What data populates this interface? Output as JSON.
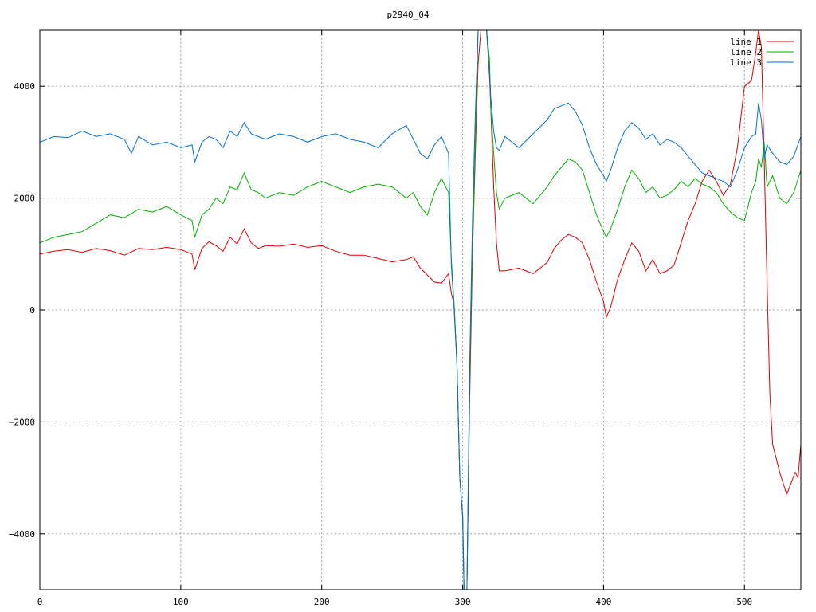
{
  "chart_data": {
    "type": "line",
    "title": "p2940_04",
    "xlabel": "",
    "ylabel": "",
    "xlim": [
      0,
      540
    ],
    "ylim": [
      -5000,
      5000
    ],
    "xticks": [
      0,
      100,
      200,
      300,
      400,
      500
    ],
    "yticks": [
      -4000,
      -2000,
      0,
      2000,
      4000
    ],
    "grid": true,
    "legend_position": "top-right",
    "series": [
      {
        "name": "line 1",
        "color": "#e00000",
        "points": [
          [
            0,
            1000
          ],
          [
            10,
            1050
          ],
          [
            20,
            1080
          ],
          [
            30,
            1030
          ],
          [
            40,
            1100
          ],
          [
            50,
            1060
          ],
          [
            60,
            980
          ],
          [
            70,
            1100
          ],
          [
            80,
            1080
          ],
          [
            90,
            1120
          ],
          [
            100,
            1080
          ],
          [
            108,
            1000
          ],
          [
            110,
            720
          ],
          [
            115,
            1100
          ],
          [
            120,
            1220
          ],
          [
            125,
            1150
          ],
          [
            130,
            1050
          ],
          [
            135,
            1300
          ],
          [
            140,
            1180
          ],
          [
            145,
            1450
          ],
          [
            150,
            1200
          ],
          [
            155,
            1100
          ],
          [
            160,
            1150
          ],
          [
            170,
            1140
          ],
          [
            180,
            1180
          ],
          [
            190,
            1120
          ],
          [
            200,
            1150
          ],
          [
            210,
            1050
          ],
          [
            220,
            980
          ],
          [
            230,
            980
          ],
          [
            240,
            920
          ],
          [
            250,
            860
          ],
          [
            260,
            900
          ],
          [
            265,
            950
          ],
          [
            270,
            750
          ],
          [
            280,
            500
          ],
          [
            285,
            480
          ],
          [
            290,
            650
          ],
          [
            292,
            300
          ],
          [
            294,
            100
          ],
          [
            296,
            -1000
          ],
          [
            298,
            -3000
          ],
          [
            300,
            -3700
          ],
          [
            301,
            -5000
          ],
          [
            303,
            -5000
          ],
          [
            305,
            -1600
          ],
          [
            307,
            1000
          ],
          [
            309,
            2800
          ],
          [
            311,
            4400
          ],
          [
            313,
            5000
          ],
          [
            317,
            5000
          ],
          [
            319,
            4200
          ],
          [
            320,
            3600
          ],
          [
            322,
            2200
          ],
          [
            324,
            1200
          ],
          [
            326,
            700
          ],
          [
            330,
            700
          ],
          [
            340,
            750
          ],
          [
            350,
            650
          ],
          [
            360,
            850
          ],
          [
            365,
            1100
          ],
          [
            370,
            1250
          ],
          [
            375,
            1350
          ],
          [
            380,
            1300
          ],
          [
            385,
            1200
          ],
          [
            390,
            900
          ],
          [
            395,
            500
          ],
          [
            400,
            150
          ],
          [
            402,
            -130
          ],
          [
            405,
            50
          ],
          [
            410,
            550
          ],
          [
            415,
            900
          ],
          [
            420,
            1200
          ],
          [
            425,
            1050
          ],
          [
            430,
            700
          ],
          [
            435,
            900
          ],
          [
            440,
            650
          ],
          [
            445,
            700
          ],
          [
            450,
            800
          ],
          [
            455,
            1200
          ],
          [
            460,
            1600
          ],
          [
            465,
            1900
          ],
          [
            470,
            2300
          ],
          [
            475,
            2500
          ],
          [
            480,
            2300
          ],
          [
            485,
            2050
          ],
          [
            490,
            2250
          ],
          [
            495,
            2900
          ],
          [
            500,
            4000
          ],
          [
            505,
            4100
          ],
          [
            508,
            4600
          ],
          [
            510,
            5000
          ],
          [
            512,
            4700
          ],
          [
            514,
            2700
          ],
          [
            516,
            500
          ],
          [
            518,
            -1500
          ],
          [
            520,
            -2400
          ],
          [
            525,
            -2900
          ],
          [
            530,
            -3300
          ],
          [
            533,
            -3100
          ],
          [
            536,
            -2900
          ],
          [
            538,
            -3000
          ],
          [
            540,
            -2400
          ]
        ]
      },
      {
        "name": "line 2",
        "color": "#00b000",
        "points": [
          [
            0,
            1200
          ],
          [
            10,
            1300
          ],
          [
            20,
            1350
          ],
          [
            30,
            1400
          ],
          [
            40,
            1550
          ],
          [
            50,
            1700
          ],
          [
            60,
            1650
          ],
          [
            70,
            1800
          ],
          [
            80,
            1750
          ],
          [
            90,
            1850
          ],
          [
            100,
            1700
          ],
          [
            108,
            1600
          ],
          [
            110,
            1300
          ],
          [
            115,
            1700
          ],
          [
            120,
            1800
          ],
          [
            125,
            2000
          ],
          [
            130,
            1900
          ],
          [
            135,
            2200
          ],
          [
            140,
            2150
          ],
          [
            145,
            2450
          ],
          [
            150,
            2150
          ],
          [
            155,
            2100
          ],
          [
            160,
            2000
          ],
          [
            170,
            2100
          ],
          [
            180,
            2050
          ],
          [
            190,
            2200
          ],
          [
            200,
            2300
          ],
          [
            210,
            2200
          ],
          [
            220,
            2100
          ],
          [
            230,
            2200
          ],
          [
            240,
            2250
          ],
          [
            250,
            2200
          ],
          [
            260,
            2000
          ],
          [
            265,
            2100
          ],
          [
            270,
            1850
          ],
          [
            275,
            1700
          ],
          [
            280,
            2100
          ],
          [
            285,
            2350
          ],
          [
            290,
            2100
          ],
          [
            292,
            900
          ],
          [
            294,
            100
          ],
          [
            296,
            -1000
          ],
          [
            298,
            -3000
          ],
          [
            300,
            -3700
          ],
          [
            301,
            -5000
          ],
          [
            303,
            -5000
          ],
          [
            305,
            -1200
          ],
          [
            307,
            1200
          ],
          [
            309,
            3000
          ],
          [
            311,
            5000
          ],
          [
            317,
            5000
          ],
          [
            319,
            4500
          ],
          [
            320,
            3600
          ],
          [
            322,
            2800
          ],
          [
            324,
            2100
          ],
          [
            326,
            1800
          ],
          [
            330,
            2000
          ],
          [
            340,
            2100
          ],
          [
            350,
            1900
          ],
          [
            360,
            2200
          ],
          [
            365,
            2400
          ],
          [
            370,
            2550
          ],
          [
            375,
            2700
          ],
          [
            380,
            2650
          ],
          [
            385,
            2500
          ],
          [
            390,
            2100
          ],
          [
            395,
            1700
          ],
          [
            400,
            1400
          ],
          [
            402,
            1300
          ],
          [
            405,
            1450
          ],
          [
            410,
            1800
          ],
          [
            415,
            2200
          ],
          [
            420,
            2500
          ],
          [
            425,
            2350
          ],
          [
            430,
            2100
          ],
          [
            435,
            2200
          ],
          [
            440,
            2000
          ],
          [
            445,
            2050
          ],
          [
            450,
            2150
          ],
          [
            455,
            2300
          ],
          [
            460,
            2200
          ],
          [
            465,
            2350
          ],
          [
            470,
            2250
          ],
          [
            475,
            2200
          ],
          [
            480,
            2100
          ],
          [
            485,
            1900
          ],
          [
            490,
            1750
          ],
          [
            495,
            1650
          ],
          [
            500,
            1600
          ],
          [
            505,
            2100
          ],
          [
            508,
            2300
          ],
          [
            510,
            2700
          ],
          [
            512,
            2550
          ],
          [
            514,
            3000
          ],
          [
            516,
            2200
          ],
          [
            520,
            2400
          ],
          [
            525,
            2000
          ],
          [
            530,
            1900
          ],
          [
            535,
            2100
          ],
          [
            540,
            2500
          ]
        ]
      },
      {
        "name": "line 3",
        "color": "#0070d0",
        "points": [
          [
            0,
            3000
          ],
          [
            10,
            3100
          ],
          [
            20,
            3080
          ],
          [
            30,
            3200
          ],
          [
            40,
            3100
          ],
          [
            50,
            3150
          ],
          [
            60,
            3050
          ],
          [
            65,
            2800
          ],
          [
            70,
            3100
          ],
          [
            80,
            2950
          ],
          [
            90,
            3000
          ],
          [
            100,
            2900
          ],
          [
            108,
            2950
          ],
          [
            110,
            2650
          ],
          [
            115,
            3000
          ],
          [
            120,
            3100
          ],
          [
            125,
            3050
          ],
          [
            130,
            2900
          ],
          [
            135,
            3200
          ],
          [
            140,
            3100
          ],
          [
            145,
            3350
          ],
          [
            150,
            3150
          ],
          [
            155,
            3100
          ],
          [
            160,
            3050
          ],
          [
            170,
            3150
          ],
          [
            180,
            3100
          ],
          [
            190,
            3000
          ],
          [
            200,
            3100
          ],
          [
            210,
            3150
          ],
          [
            220,
            3050
          ],
          [
            230,
            3000
          ],
          [
            240,
            2900
          ],
          [
            250,
            3150
          ],
          [
            260,
            3300
          ],
          [
            265,
            3050
          ],
          [
            270,
            2800
          ],
          [
            275,
            2700
          ],
          [
            280,
            2950
          ],
          [
            285,
            3100
          ],
          [
            290,
            2800
          ],
          [
            292,
            800
          ],
          [
            294,
            0
          ],
          [
            296,
            -1000
          ],
          [
            298,
            -3000
          ],
          [
            300,
            -3700
          ],
          [
            301,
            -5000
          ],
          [
            303,
            -5000
          ],
          [
            305,
            -1000
          ],
          [
            307,
            1600
          ],
          [
            309,
            3500
          ],
          [
            311,
            5000
          ],
          [
            317,
            5000
          ],
          [
            319,
            4300
          ],
          [
            320,
            3800
          ],
          [
            322,
            3200
          ],
          [
            324,
            2900
          ],
          [
            326,
            2850
          ],
          [
            330,
            3100
          ],
          [
            340,
            2900
          ],
          [
            350,
            3150
          ],
          [
            360,
            3400
          ],
          [
            365,
            3600
          ],
          [
            370,
            3650
          ],
          [
            375,
            3700
          ],
          [
            380,
            3550
          ],
          [
            385,
            3300
          ],
          [
            390,
            2900
          ],
          [
            395,
            2600
          ],
          [
            400,
            2400
          ],
          [
            402,
            2300
          ],
          [
            405,
            2500
          ],
          [
            410,
            2900
          ],
          [
            415,
            3200
          ],
          [
            420,
            3350
          ],
          [
            425,
            3250
          ],
          [
            430,
            3050
          ],
          [
            435,
            3150
          ],
          [
            440,
            2950
          ],
          [
            445,
            3050
          ],
          [
            450,
            3000
          ],
          [
            455,
            2900
          ],
          [
            460,
            2750
          ],
          [
            465,
            2600
          ],
          [
            470,
            2450
          ],
          [
            475,
            2400
          ],
          [
            480,
            2350
          ],
          [
            485,
            2300
          ],
          [
            490,
            2200
          ],
          [
            495,
            2500
          ],
          [
            500,
            2900
          ],
          [
            505,
            3100
          ],
          [
            508,
            3150
          ],
          [
            510,
            3700
          ],
          [
            512,
            3400
          ],
          [
            514,
            2700
          ],
          [
            516,
            2950
          ],
          [
            520,
            2800
          ],
          [
            525,
            2650
          ],
          [
            530,
            2600
          ],
          [
            535,
            2750
          ],
          [
            540,
            3100
          ]
        ]
      }
    ]
  }
}
